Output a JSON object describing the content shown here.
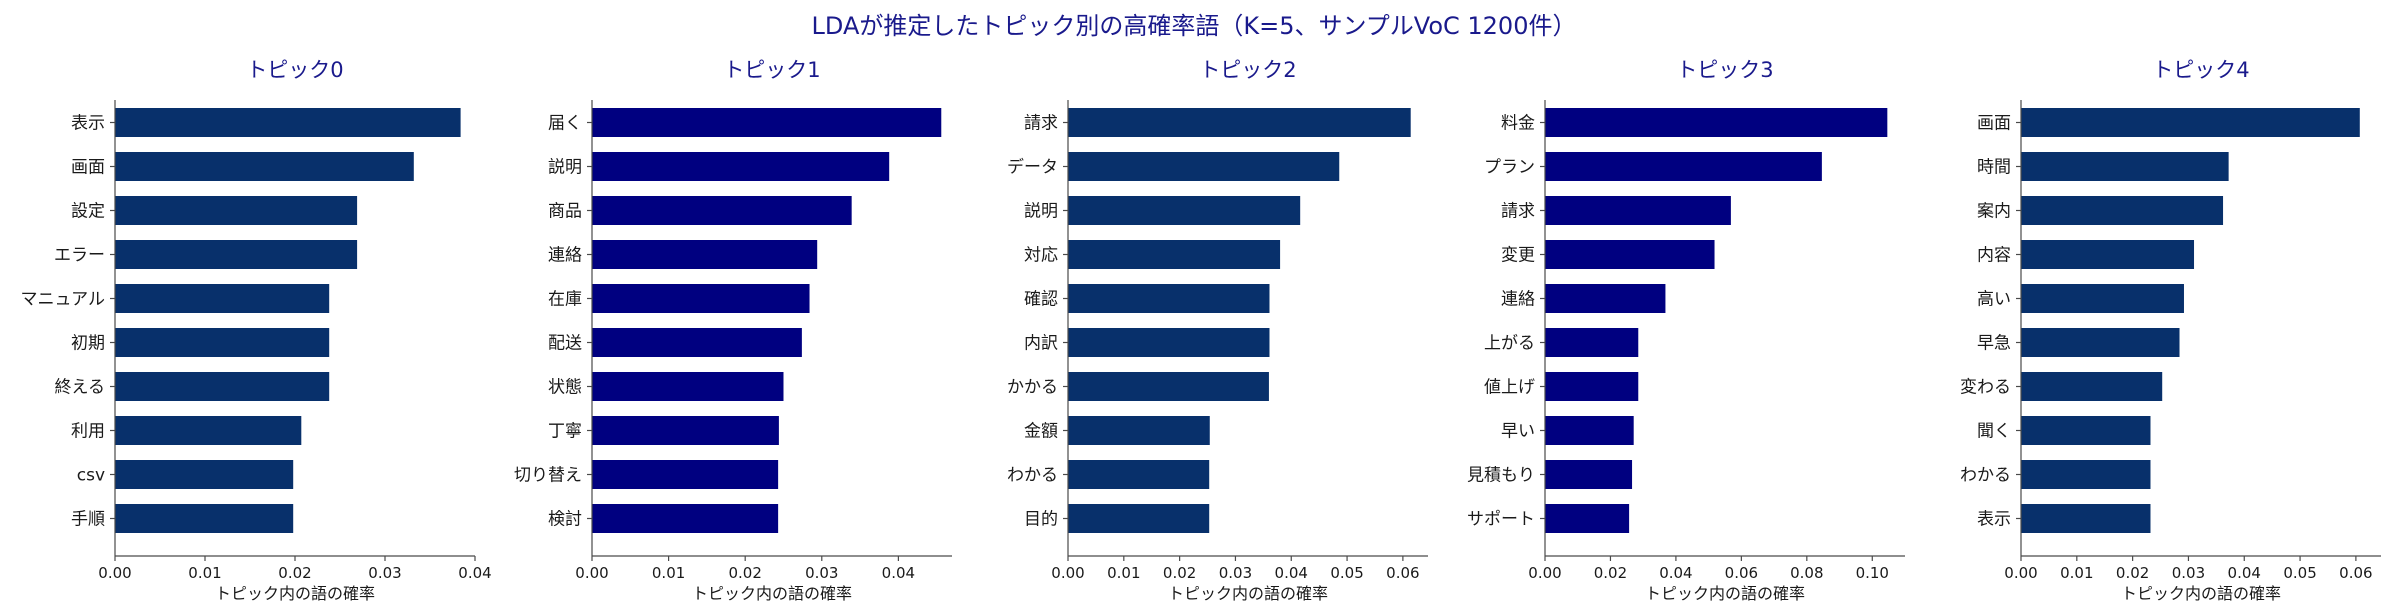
{
  "suptitle": "LDAが推定したトピック別の高確率語（K=5、サンプルVoC 1200件）",
  "chart_data": [
    {
      "type": "bar",
      "orientation": "horizontal",
      "title": "トピック0",
      "xlabel": "トピック内の語の確率",
      "xlim": [
        0,
        0.04
      ],
      "xticks": [
        "0.00",
        "0.01",
        "0.02",
        "0.03",
        "0.04"
      ],
      "xtick_values": [
        0,
        0.01,
        0.02,
        0.03,
        0.04
      ],
      "color": "#08306b",
      "categories": [
        "表示",
        "画面",
        "設定",
        "エラー",
        "マニュアル",
        "初期",
        "終える",
        "利用",
        "csv",
        "手順"
      ],
      "values": [
        0.0384,
        0.0332,
        0.0269,
        0.0269,
        0.0238,
        0.0238,
        0.0238,
        0.0207,
        0.0198,
        0.0198
      ]
    },
    {
      "type": "bar",
      "orientation": "horizontal",
      "title": "トピック1",
      "xlabel": "トピック内の語の確率",
      "xlim": [
        0,
        0.047
      ],
      "xticks": [
        "0.00",
        "0.01",
        "0.02",
        "0.03",
        "0.04"
      ],
      "xtick_values": [
        0,
        0.01,
        0.02,
        0.03,
        0.04
      ],
      "color": "#000080",
      "categories": [
        "届く",
        "説明",
        "商品",
        "連絡",
        "在庫",
        "配送",
        "状態",
        "丁寧",
        "切り替え",
        "検討"
      ],
      "values": [
        0.0456,
        0.0388,
        0.0339,
        0.0294,
        0.0284,
        0.0274,
        0.025,
        0.0244,
        0.0243,
        0.0243
      ]
    },
    {
      "type": "bar",
      "orientation": "horizontal",
      "title": "トピック2",
      "xlabel": "トピック内の語の確率",
      "xlim": [
        0,
        0.0645
      ],
      "xticks": [
        "0.00",
        "0.01",
        "0.02",
        "0.03",
        "0.04",
        "0.05",
        "0.06"
      ],
      "xtick_values": [
        0,
        0.01,
        0.02,
        0.03,
        0.04,
        0.05,
        0.06
      ],
      "color": "#08306b",
      "categories": [
        "請求",
        "データ",
        "説明",
        "対応",
        "確認",
        "内訳",
        "かかる",
        "金額",
        "わかる",
        "目的"
      ],
      "values": [
        0.0614,
        0.0486,
        0.0416,
        0.038,
        0.0361,
        0.0361,
        0.036,
        0.0254,
        0.0253,
        0.0253
      ]
    },
    {
      "type": "bar",
      "orientation": "horizontal",
      "title": "トピック3",
      "xlabel": "トピック内の語の確率",
      "xlim": [
        0,
        0.11
      ],
      "xticks": [
        "0.00",
        "0.02",
        "0.04",
        "0.06",
        "0.08",
        "0.10"
      ],
      "xtick_values": [
        0,
        0.02,
        0.04,
        0.06,
        0.08,
        0.1
      ],
      "color": "#000080",
      "categories": [
        "料金",
        "プラン",
        "請求",
        "変更",
        "連絡",
        "上がる",
        "値上げ",
        "早い",
        "見積もり",
        "サポート"
      ],
      "values": [
        0.1046,
        0.0846,
        0.0568,
        0.0518,
        0.0368,
        0.0285,
        0.0285,
        0.0271,
        0.0266,
        0.0257
      ]
    },
    {
      "type": "bar",
      "orientation": "horizontal",
      "title": "トピック4",
      "xlabel": "トピック内の語の確率",
      "xlim": [
        0,
        0.0645
      ],
      "xticks": [
        "0.00",
        "0.01",
        "0.02",
        "0.03",
        "0.04",
        "0.05",
        "0.06"
      ],
      "xtick_values": [
        0,
        0.01,
        0.02,
        0.03,
        0.04,
        0.05,
        0.06
      ],
      "color": "#08306b",
      "categories": [
        "画面",
        "時間",
        "案内",
        "内容",
        "高い",
        "早急",
        "変わる",
        "聞く",
        "わかる",
        "表示"
      ],
      "values": [
        0.0607,
        0.0372,
        0.0362,
        0.031,
        0.0292,
        0.0284,
        0.0253,
        0.0232,
        0.0232,
        0.0232
      ]
    }
  ]
}
